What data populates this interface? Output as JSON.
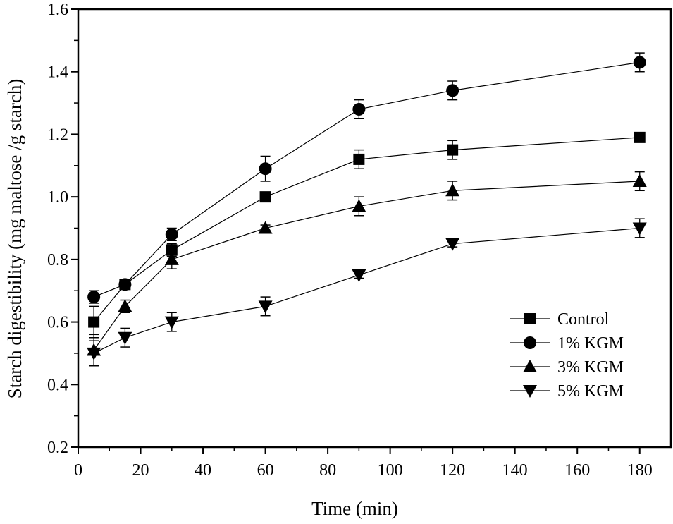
{
  "chart_data": {
    "type": "line",
    "title": "",
    "xlabel": "Time (min)",
    "ylabel": "Starch digestibility (mg maltose /g starch)",
    "xlim": [
      0,
      190
    ],
    "ylim": [
      0.2,
      1.6
    ],
    "xticks": [
      0,
      20,
      40,
      60,
      80,
      100,
      120,
      140,
      160,
      180
    ],
    "yticks": [
      0.2,
      0.4,
      0.6,
      0.8,
      1.0,
      1.2,
      1.4,
      1.6
    ],
    "xtick_labels": [
      "0",
      "20",
      "40",
      "60",
      "80",
      "100",
      "120",
      "140",
      "160",
      "180"
    ],
    "ytick_labels": [
      "0.2",
      "0.4",
      "0.6",
      "0.8",
      "1.0",
      "1.2",
      "1.4",
      "1.6"
    ],
    "grid": false,
    "legend_position": "lower-right",
    "x": [
      5,
      15,
      30,
      60,
      90,
      120,
      180
    ],
    "series": [
      {
        "name": "Control",
        "marker": "square",
        "values": [
          0.6,
          0.72,
          0.83,
          1.0,
          1.12,
          1.15,
          1.19
        ],
        "errors": [
          0.05,
          0.01,
          0.02,
          0.01,
          0.03,
          0.03,
          0.01
        ]
      },
      {
        "name": "1% KGM",
        "marker": "circle",
        "values": [
          0.68,
          0.72,
          0.88,
          1.09,
          1.28,
          1.34,
          1.43
        ],
        "errors": [
          0.02,
          0.01,
          0.02,
          0.04,
          0.03,
          0.03,
          0.03
        ]
      },
      {
        "name": "3% KGM",
        "marker": "triangle-up",
        "values": [
          0.51,
          0.65,
          0.8,
          0.9,
          0.97,
          1.02,
          1.05
        ],
        "errors": [
          0.05,
          0.02,
          0.03,
          0.01,
          0.03,
          0.03,
          0.03
        ]
      },
      {
        "name": "5% KGM",
        "marker": "triangle-down",
        "values": [
          0.5,
          0.55,
          0.6,
          0.65,
          0.75,
          0.85,
          0.9
        ],
        "errors": [
          0.04,
          0.03,
          0.03,
          0.03,
          0.01,
          0.01,
          0.03
        ]
      }
    ]
  }
}
